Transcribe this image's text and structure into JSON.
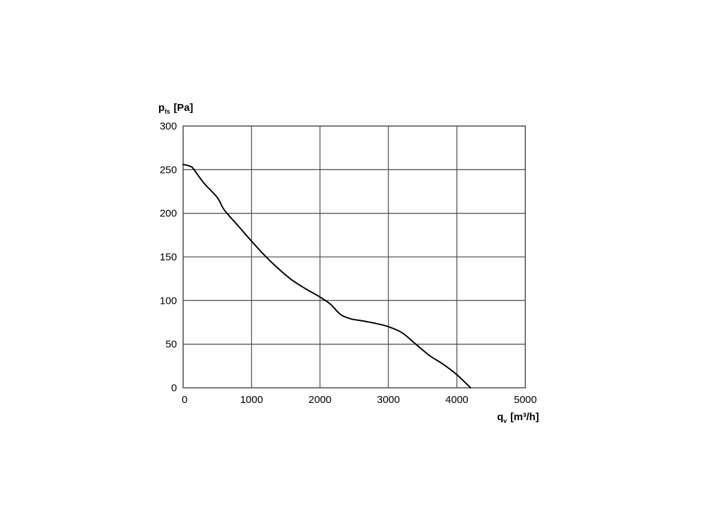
{
  "chart_data": {
    "type": "line",
    "ylabel": {
      "main": "p",
      "sub": "fs",
      "unit": "[Pa]"
    },
    "xlabel": {
      "main": "q",
      "sub": "v",
      "unit": "[m³/h]"
    },
    "xlim": [
      0,
      5000
    ],
    "ylim": [
      0,
      300
    ],
    "xticks": [
      0,
      1000,
      2000,
      3000,
      4000,
      5000
    ],
    "yticks": [
      0,
      50,
      100,
      150,
      200,
      250,
      300
    ],
    "grid": true,
    "series": [
      {
        "x": [
          0,
          100,
          150,
          300,
          500,
          600,
          800,
          1000,
          1200,
          1400,
          1600,
          1800,
          2000,
          2150,
          2300,
          2450,
          2600,
          2800,
          3000,
          3200,
          3400,
          3600,
          3800,
          4000,
          4200
        ],
        "y": [
          256,
          254,
          251,
          235,
          218,
          204,
          186,
          168,
          151,
          136,
          123,
          113,
          104,
          96,
          84,
          79,
          77,
          74,
          70,
          63,
          50,
          37,
          27,
          15,
          0
        ],
        "color": "#000000"
      }
    ]
  }
}
